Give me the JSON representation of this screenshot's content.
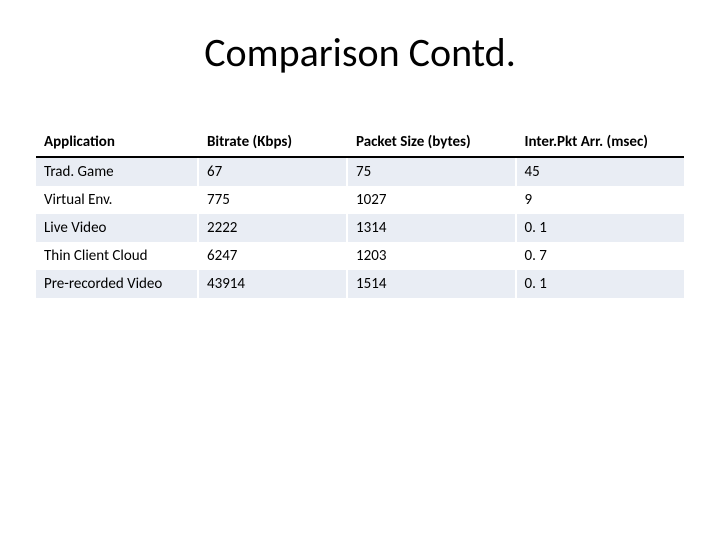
{
  "slide": {
    "title": "Comparison Contd.",
    "title_fontsize": 40,
    "title_color": "#000000",
    "background_color": "#ffffff"
  },
  "table": {
    "type": "table",
    "columns": [
      {
        "label": "Application",
        "width_pct": 25,
        "align": "left"
      },
      {
        "label": "Bitrate (Kbps)",
        "width_pct": 23,
        "align": "left"
      },
      {
        "label": "Packet Size (bytes)",
        "width_pct": 26,
        "align": "left"
      },
      {
        "label": "Inter.Pkt Arr. (msec)",
        "width_pct": 26,
        "align": "left"
      }
    ],
    "rows": [
      {
        "cells": [
          "Trad. Game",
          "67",
          "75",
          "45"
        ]
      },
      {
        "cells": [
          "Virtual Env.",
          "775",
          "1027",
          "9"
        ]
      },
      {
        "cells": [
          "Live Video",
          "2222",
          "1314",
          "0. 1"
        ]
      },
      {
        "cells": [
          "Thin Client Cloud",
          "6247",
          "1203",
          "0. 7"
        ]
      },
      {
        "cells": [
          "Pre-recorded Video",
          "43914",
          "1514",
          "0. 1"
        ]
      }
    ],
    "header_fontsize": 15,
    "header_fontweight": "700",
    "cell_fontsize": 15,
    "header_background": "#ffffff",
    "header_border_bottom_color": "#000000",
    "row_odd_background": "#e9edf4",
    "row_even_background": "#ffffff",
    "cell_divider_color": "#ffffff",
    "text_color": "#000000"
  }
}
